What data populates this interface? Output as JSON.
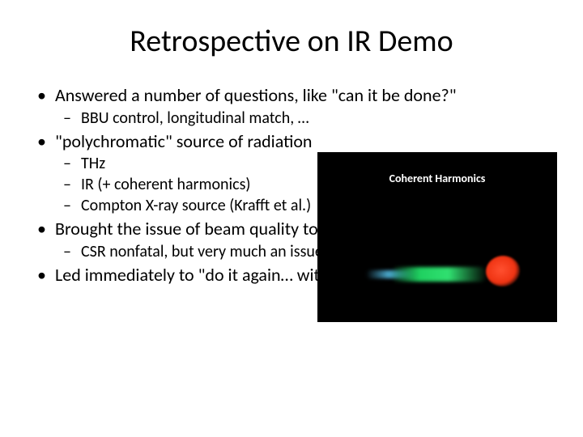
{
  "title": "Retrospective on IR Demo",
  "bullets": {
    "b1": "Answered a number of questions, like \"can it be done?\"",
    "b1a": "BBU control, longitudinal match, …",
    "b2": "\"polychromatic\" source of radiation",
    "b2a": "THz",
    "b2b": "IR (+ coherent harmonics)",
    "b2c": "Compton X-ray source (Krafft et al.)",
    "b3": "Brought the issue of beam quality to the forefront",
    "b3a": "CSR nonfatal, but very much an issue",
    "b4": "Led immediately to \"do it again… with MORE power\"…"
  },
  "figure": {
    "caption": "Coherent Harmonics",
    "background": "#000000",
    "colors": {
      "red": "#ef3312",
      "green": "#1fd060",
      "cyan": "#4aa8cc"
    }
  },
  "style": {
    "title_fontsize": 38,
    "body_fontsize": 22,
    "sub_fontsize": 20,
    "text_color": "#000000",
    "background": "#ffffff"
  }
}
